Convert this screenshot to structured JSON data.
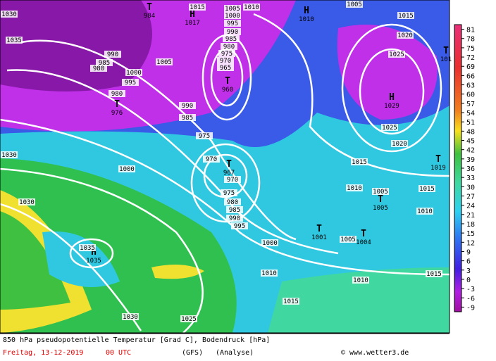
{
  "map": {
    "caption": "850 hPa pseudopotentielle Temperatur [Grad C], Bodendruck [hPa]",
    "date": "Freitag, 13-12-2019",
    "time": "00 UTC",
    "model": "(GFS)",
    "run": "(Analyse)",
    "credit": "© www.wetter3.de",
    "colorbar_ticks": [
      81,
      78,
      75,
      72,
      69,
      66,
      63,
      60,
      57,
      54,
      51,
      48,
      45,
      42,
      39,
      36,
      33,
      30,
      27,
      24,
      21,
      18,
      15,
      12,
      9,
      6,
      3,
      0,
      -3,
      -6,
      -9
    ],
    "centers": [
      {
        "symbol": "T",
        "pressure": 984
      },
      {
        "symbol": "H",
        "pressure": 1017
      },
      {
        "symbol": "T",
        "pressure": 960
      },
      {
        "symbol": "T",
        "pressure": 976
      },
      {
        "symbol": "T",
        "pressure": 967
      },
      {
        "symbol": "H",
        "pressure": 1010
      },
      {
        "symbol": "H",
        "pressure": 1029
      },
      {
        "symbol": "T",
        "pressure": 101
      },
      {
        "symbol": "T",
        "pressure": 1019
      },
      {
        "symbol": "T",
        "pressure": 1005
      },
      {
        "symbol": "T",
        "pressure": 1001
      },
      {
        "symbol": "T",
        "pressure": 1004
      },
      {
        "symbol": "H",
        "pressure": 1035
      }
    ],
    "pressure_labels": [
      1015,
      1010,
      1005,
      1000,
      995,
      990,
      985,
      980,
      975,
      970,
      965,
      1005,
      1015,
      1020,
      1025,
      1025,
      1020,
      1015,
      1010,
      1005,
      1010,
      1015,
      1005,
      1000,
      995,
      990,
      985,
      980,
      975,
      970,
      970,
      975,
      985,
      990,
      1000,
      995,
      1005,
      990,
      985,
      980,
      980,
      1000,
      1030,
      1030,
      1035,
      1030,
      1025,
      1010,
      1010,
      1015,
      1015,
      1035,
      1030
    ]
  }
}
